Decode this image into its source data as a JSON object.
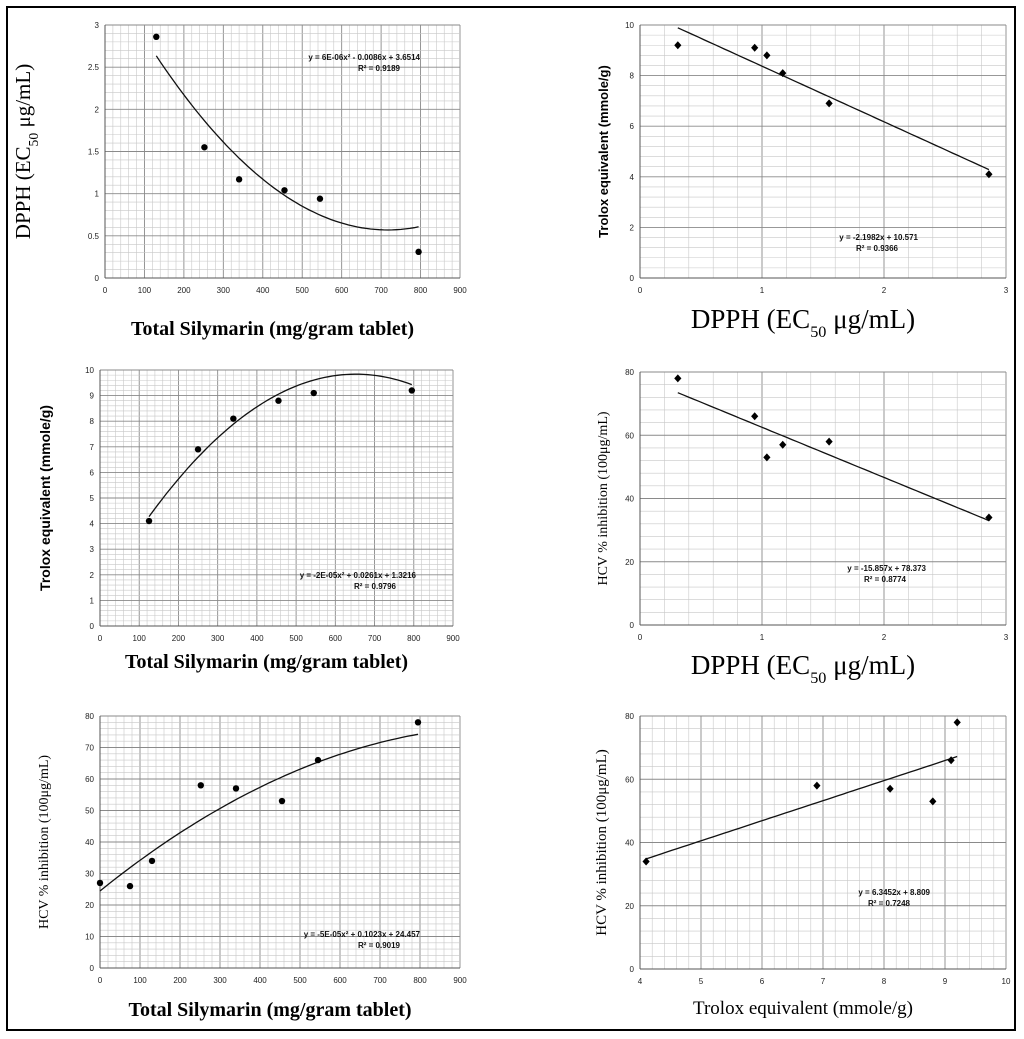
{
  "chart_data": [
    {
      "id": "c1",
      "type": "scatter",
      "xlabel": "Total Silymarin (mg/gram tablet)",
      "ylabel_main": "DPPH (EC",
      "ylabel_sub": "50",
      "ylabel_tail": " μg/mL)",
      "xlim": [
        0,
        900
      ],
      "xstep": 100,
      "ylim": [
        0,
        3
      ],
      "ystep": 0.5,
      "ytick_labels": [
        "0",
        "0.5",
        "1",
        "1.5",
        "2",
        "2.5",
        "3"
      ],
      "xtick_labels": [
        "0",
        "100",
        "200",
        "300",
        "400",
        "500",
        "600",
        "700",
        "800",
        "900"
      ],
      "points": [
        [
          130,
          2.86
        ],
        [
          252,
          1.55
        ],
        [
          340,
          1.17
        ],
        [
          455,
          1.04
        ],
        [
          545,
          0.94
        ],
        [
          795,
          0.31
        ]
      ],
      "marker": "circle",
      "fit": {
        "kind": "poly2",
        "a": 6e-06,
        "b": -0.0086,
        "c": 3.6514,
        "x0": 130,
        "x1": 795
      },
      "equation": "y = 6E-06x² - 0.0086x + 3.6514",
      "r2": "R² = 0.9189"
    },
    {
      "id": "c2",
      "type": "scatter",
      "xlabel_main": "DPPH (EC",
      "xlabel_sub": "50",
      "xlabel_tail": " μg/mL)",
      "ylabel": "Trolox equivalent (mmole/g)",
      "xlim": [
        0,
        3
      ],
      "xstep": 1,
      "ylim": [
        0,
        10
      ],
      "ystep": 2,
      "ytick_labels": [
        "0",
        "2",
        "4",
        "6",
        "8",
        "10"
      ],
      "xtick_labels": [
        "0",
        "1",
        "2",
        "3"
      ],
      "points": [
        [
          0.31,
          9.2
        ],
        [
          0.94,
          9.1
        ],
        [
          1.04,
          8.8
        ],
        [
          1.17,
          8.1
        ],
        [
          1.55,
          6.9
        ],
        [
          2.86,
          4.1
        ]
      ],
      "marker": "diamond",
      "fit": {
        "kind": "linear",
        "m": -2.1982,
        "b": 10.571,
        "x0": 0.31,
        "x1": 2.86
      },
      "equation": "y = -2.1982x + 10.571",
      "r2": "R² = 0.9366"
    },
    {
      "id": "c3",
      "type": "scatter",
      "xlabel": "Total Silymarin (mg/gram tablet)",
      "ylabel": "Trolox equivalent (mmole/g)",
      "xlim": [
        0,
        900
      ],
      "xstep": 100,
      "ylim": [
        0,
        10
      ],
      "ystep": 1,
      "ytick_labels": [
        "0",
        "1",
        "2",
        "3",
        "4",
        "5",
        "6",
        "7",
        "8",
        "9",
        "10"
      ],
      "xtick_labels": [
        "0",
        "100",
        "200",
        "300",
        "400",
        "500",
        "600",
        "700",
        "800",
        "900"
      ],
      "points": [
        [
          125,
          4.1
        ],
        [
          250,
          6.9
        ],
        [
          340,
          8.1
        ],
        [
          455,
          8.8
        ],
        [
          545,
          9.1
        ],
        [
          795,
          9.2
        ]
      ],
      "marker": "circle",
      "fit": {
        "kind": "poly2",
        "a": -2e-05,
        "b": 0.0261,
        "c": 1.3216,
        "x0": 125,
        "x1": 795
      },
      "equation": "y = -2E-05x² + 0.0261x + 1.3216",
      "r2": "R² = 0.9796"
    },
    {
      "id": "c4",
      "type": "scatter",
      "xlabel_main": "DPPH (EC",
      "xlabel_sub": "50",
      "xlabel_tail": " μg/mL)",
      "ylabel": "HCV % inhibition (100μg/mL)",
      "xlim": [
        0,
        3
      ],
      "xstep": 1,
      "ylim": [
        0,
        80
      ],
      "ystep": 20,
      "ytick_labels": [
        "0",
        "20",
        "40",
        "60",
        "80"
      ],
      "xtick_labels": [
        "0",
        "1",
        "2",
        "3"
      ],
      "points": [
        [
          0.31,
          78
        ],
        [
          0.94,
          66
        ],
        [
          1.04,
          53
        ],
        [
          1.17,
          57
        ],
        [
          1.55,
          58
        ],
        [
          2.86,
          34
        ]
      ],
      "marker": "diamond",
      "fit": {
        "kind": "linear",
        "m": -15.857,
        "b": 78.373,
        "x0": 0.31,
        "x1": 2.86
      },
      "equation": "y = -15.857x + 78.373",
      "r2": "R² = 0.8774"
    },
    {
      "id": "c5",
      "type": "scatter",
      "xlabel": "Total Silymarin (mg/gram tablet)",
      "ylabel": "HCV % inhibition (100μg/mL)",
      "xlim": [
        0,
        900
      ],
      "xstep": 100,
      "ylim": [
        0,
        80
      ],
      "ystep": 10,
      "ytick_labels": [
        "0",
        "10",
        "20",
        "30",
        "40",
        "50",
        "60",
        "70",
        "80"
      ],
      "xtick_labels": [
        "0",
        "100",
        "200",
        "300",
        "400",
        "500",
        "600",
        "700",
        "800",
        "900"
      ],
      "points": [
        [
          0,
          27
        ],
        [
          75,
          26
        ],
        [
          130,
          34
        ],
        [
          252,
          58
        ],
        [
          340,
          57
        ],
        [
          455,
          53
        ],
        [
          545,
          66
        ],
        [
          795,
          78
        ]
      ],
      "marker": "circle",
      "fit": {
        "kind": "poly2",
        "a": -5e-05,
        "b": 0.1023,
        "c": 24.457,
        "x0": 0,
        "x1": 795
      },
      "equation": "y = -5E-05x² + 0.1023x + 24.457",
      "r2": "R² = 0.9019"
    },
    {
      "id": "c6",
      "type": "scatter",
      "xlabel": "Trolox equivalent (mmole/g)",
      "ylabel": "HCV % inhibition (100μg/mL)",
      "xlim": [
        4,
        10
      ],
      "xstep": 1,
      "ylim": [
        0,
        80
      ],
      "ystep": 20,
      "ytick_labels": [
        "0",
        "20",
        "40",
        "60",
        "80"
      ],
      "xtick_labels": [
        "4",
        "5",
        "6",
        "7",
        "8",
        "9",
        "10"
      ],
      "points": [
        [
          4.1,
          34
        ],
        [
          6.9,
          58
        ],
        [
          8.1,
          57
        ],
        [
          8.8,
          53
        ],
        [
          9.1,
          66
        ],
        [
          9.2,
          78
        ]
      ],
      "marker": "diamond",
      "fit": {
        "kind": "linear",
        "m": 6.3452,
        "b": 8.809,
        "x0": 4.1,
        "x1": 9.2
      },
      "equation": "y = 6.3452x + 8.809",
      "r2": "R² = 0.7248"
    }
  ]
}
